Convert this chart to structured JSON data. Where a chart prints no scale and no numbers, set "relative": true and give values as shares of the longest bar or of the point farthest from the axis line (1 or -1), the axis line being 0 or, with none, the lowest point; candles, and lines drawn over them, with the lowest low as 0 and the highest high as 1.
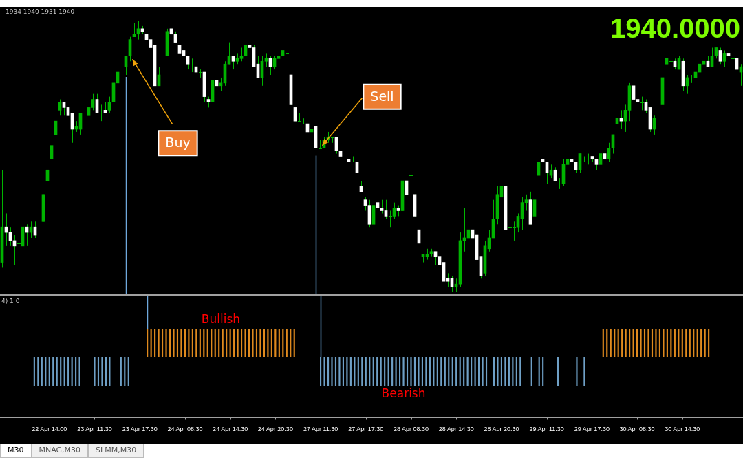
{
  "chart_data": [
    {
      "type": "candlestick",
      "relative": true,
      "color": "#00b400",
      "tick_labels": false,
      "colors": [
        "#00b400",
        "#ffffff",
        "#ffffff",
        "#ffffff",
        "#00b400",
        "#00b400",
        "#ffffff",
        "#00b400",
        "#ffffff",
        "#00b400",
        "#00b400",
        "#00b400",
        "#00b400",
        "#00b400",
        "#00b400",
        "#ffffff",
        "#ffffff",
        "#ffffff",
        "#00b400",
        "#00b400",
        "#00b400",
        "#00b400",
        "#00b400",
        "#ffffff",
        "#00b400",
        "#ffffff",
        "#00b400",
        "#00b400",
        "#00b400",
        "#00b400",
        "#00b400",
        "#00b400",
        "#00b400",
        "#00b400",
        "#ffffff",
        "#ffffff",
        "#ffffff",
        "#ffffff",
        "#00b400",
        "#00b400",
        "#00b400",
        "#ffffff",
        "#ffffff",
        "#ffffff",
        "#ffffff",
        "#ffffff",
        "#00b400",
        "#ffffff",
        "#00b400",
        "#ffffff",
        "#ffffff",
        "#00b400",
        "#ffffff",
        "#00b400",
        "#00b400",
        "#00b400",
        "#ffffff",
        "#00b400",
        "#00b400",
        "#00b400",
        "#ffffff",
        "#ffffff",
        "#ffffff",
        "#00b400",
        "#00b400",
        "#ffffff",
        "#00b400",
        "#00b400",
        "#00b400",
        "#00b400",
        "#ffffff",
        "#ffffff",
        "#00b400",
        "#00b400",
        "#ffffff",
        "#00b400",
        "#ffffff",
        "#00b400",
        "#00b400",
        "#00b400",
        "#00b400",
        "#ffffff",
        "#ffffff",
        "#00b400",
        "#ffffff",
        "#00b400",
        "#ffffff",
        "#ffffff",
        "#ffffff",
        "#ffffff",
        "#00b400",
        "#ffffff",
        "#ffffff",
        "#ffffff",
        "#00b400",
        "#00b400",
        "#ffffff",
        "#00b400",
        "#ffffff",
        "#00b400",
        "#ffffff",
        "#ffffff",
        "#00b400",
        "#00b400",
        "#00b400",
        "#ffffff",
        "#ffffff",
        "#ffffff",
        "#ffffff",
        "#ffffff",
        "#00b400",
        "#00b400",
        "#00b400",
        "#00b400",
        "#ffffff",
        "#ffffff",
        "#ffffff",
        "#00b400",
        "#00b400",
        "#00b400",
        "#00b400",
        "#00b400",
        "#ffffff",
        "#00b400",
        "#00b400",
        "#00b400",
        "#00b400",
        "#00b400",
        "#ffffff",
        "#00b400",
        "#00b400",
        "#ffffff",
        "#ffffff",
        "#00b400",
        "#ffffff",
        "#00b400",
        "#00b400",
        "#00b400",
        "#ffffff",
        "#ffffff",
        "#00b400",
        "#00b400",
        "#00b400",
        "#ffffff",
        "#ffffff",
        "#00b400",
        "#ffffff",
        "#00b400",
        "#00b400",
        "#00b400",
        "#ffffff",
        "#00b400",
        "#00b400",
        "#ffffff",
        "#ffffff",
        "#00b400",
        "#ffffff",
        "#ffffff",
        "#00b400",
        "#00b400",
        "#00b400",
        "#00b400",
        "#00b400",
        "#ffffff",
        "#00b400",
        "#ffffff",
        "#00b400",
        "#00b400",
        "#00b400",
        "#00b400",
        "#00b400",
        "#ffffff",
        "#00b400",
        "#00b400",
        "#ffffff",
        "#00b400",
        "#ffffff",
        "#00b400",
        "#ffffff",
        "#00b400"
      ],
      "annotations": [
        "1934 1940 1931 1940",
        "1940.0000",
        "Buy",
        "Sell"
      ],
      "categories": [
        null,
        null,
        null,
        null,
        null,
        null,
        null,
        null,
        null,
        null,
        null,
        null,
        null,
        null,
        null,
        null,
        null,
        null,
        null,
        null,
        null,
        null,
        null,
        null,
        null,
        null,
        null,
        null,
        null,
        null,
        null,
        null,
        null,
        null,
        null,
        null,
        null,
        null,
        null,
        null,
        null,
        null,
        null,
        null,
        null,
        null,
        null,
        null,
        null,
        null,
        null,
        null,
        null,
        null,
        null,
        null,
        null,
        null,
        null,
        null,
        null,
        null,
        null,
        null,
        null,
        null,
        null,
        null,
        null,
        null,
        null,
        null,
        null,
        null,
        null,
        null,
        null,
        null,
        null,
        null,
        null,
        null,
        null,
        null,
        null,
        null,
        null,
        null,
        null,
        null,
        null,
        null,
        null,
        null,
        null,
        null,
        null,
        null,
        null,
        null,
        null,
        null,
        null,
        null,
        null,
        null,
        null,
        null,
        null,
        null,
        null,
        null,
        null,
        null,
        null,
        null,
        null,
        null,
        null,
        null,
        null,
        null,
        null,
        null,
        null,
        null,
        null,
        null,
        null,
        null,
        null,
        null,
        null,
        null,
        null,
        null,
        null,
        null,
        null,
        null,
        null,
        null,
        null,
        null,
        null,
        null,
        null,
        null,
        null,
        null,
        null,
        null,
        null,
        null,
        null,
        null,
        null,
        null,
        null,
        null,
        null,
        null,
        null,
        null,
        null,
        null,
        null,
        null,
        null,
        null,
        null,
        null,
        null,
        null,
        null,
        null,
        null,
        null,
        null,
        null
      ],
      "ohlc": [
        [
          0.11,
          0.45,
          0.09,
          0.24
        ],
        [
          0.24,
          0.29,
          0.17,
          0.22
        ],
        [
          0.22,
          0.24,
          0.17,
          0.19
        ],
        [
          0.19,
          0.21,
          0.1,
          0.17
        ],
        [
          0.18,
          0.2,
          0.13,
          0.18
        ],
        [
          0.17,
          0.25,
          0.15,
          0.24
        ],
        [
          0.24,
          0.25,
          0.17,
          0.22
        ],
        [
          0.22,
          0.26,
          0.2,
          0.24
        ],
        [
          0.24,
          0.26,
          0.2,
          0.21
        ],
        [
          0.23,
          0.23,
          0.23,
          0.23
        ],
        [
          0.26,
          0.36,
          0.26,
          0.36
        ],
        [
          0.41,
          0.45,
          0.41,
          0.45
        ],
        [
          0.49,
          0.54,
          0.49,
          0.54
        ],
        [
          0.58,
          0.63,
          0.58,
          0.63
        ],
        [
          0.67,
          0.71,
          0.65,
          0.7
        ],
        [
          0.7,
          0.7,
          0.65,
          0.68
        ],
        [
          0.68,
          0.68,
          0.65,
          0.65
        ],
        [
          0.66,
          0.66,
          0.55,
          0.6
        ],
        [
          0.6,
          0.63,
          0.59,
          0.61
        ],
        [
          0.6,
          0.66,
          0.58,
          0.66
        ],
        [
          0.66,
          0.66,
          0.6,
          0.66
        ],
        [
          0.65,
          0.68,
          0.65,
          0.68
        ],
        [
          0.68,
          0.73,
          0.67,
          0.71
        ],
        [
          0.71,
          0.73,
          0.66,
          0.66
        ],
        [
          0.66,
          0.69,
          0.63,
          0.66
        ],
        [
          0.67,
          0.7,
          0.66,
          0.66
        ],
        [
          0.67,
          0.72,
          0.66,
          0.7
        ],
        [
          0.7,
          0.78,
          0.7,
          0.77
        ],
        [
          0.77,
          0.81,
          0.76,
          0.81
        ],
        [
          0.83,
          0.84,
          0.8,
          0.83
        ],
        [
          0.83,
          0.87,
          0.8,
          0.87
        ],
        [
          0.87,
          0.94,
          0.85,
          0.93
        ],
        [
          0.94,
          0.99,
          0.94,
          0.95
        ],
        [
          0.95,
          1,
          0.93,
          0.97
        ],
        [
          0.97,
          0.98,
          0.95,
          0.96
        ],
        [
          0.95,
          0.96,
          0.91,
          0.93
        ],
        [
          0.93,
          0.95,
          0.9,
          0.9
        ],
        [
          0.91,
          0.91,
          0.75,
          0.76
        ],
        [
          0.76,
          0.83,
          0.76,
          0.8
        ],
        [
          0.79,
          0.79,
          0.79,
          0.79
        ],
        [
          0.87,
          0.97,
          0.87,
          0.96
        ],
        [
          0.97,
          0.97,
          0.95,
          0.95
        ],
        [
          0.95,
          0.96,
          0.92,
          0.92
        ],
        [
          0.91,
          0.91,
          0.85,
          0.88
        ],
        [
          0.89,
          0.91,
          0.87,
          0.87
        ],
        [
          0.87,
          0.87,
          0.82,
          0.84
        ],
        [
          0.83,
          0.86,
          0.81,
          0.83
        ],
        [
          0.83,
          0.83,
          0.81,
          0.81
        ],
        [
          0.81,
          0.82,
          0.79,
          0.81
        ],
        [
          0.81,
          0.81,
          0.7,
          0.72
        ],
        [
          0.71,
          0.72,
          0.68,
          0.7
        ],
        [
          0.7,
          0.82,
          0.7,
          0.78
        ],
        [
          0.78,
          0.79,
          0.75,
          0.76
        ],
        [
          0.76,
          0.79,
          0.74,
          0.77
        ],
        [
          0.77,
          0.85,
          0.76,
          0.84
        ],
        [
          0.84,
          0.92,
          0.84,
          0.87
        ],
        [
          0.87,
          0.87,
          0.82,
          0.85
        ],
        [
          0.85,
          0.88,
          0.84,
          0.86
        ],
        [
          0.86,
          0.9,
          0.85,
          0.87
        ],
        [
          0.87,
          0.92,
          0.82,
          0.91
        ],
        [
          0.91,
          0.97,
          0.9,
          0.9
        ],
        [
          0.9,
          0.91,
          0.83,
          0.83
        ],
        [
          0.84,
          0.87,
          0.79,
          0.79
        ],
        [
          0.79,
          0.87,
          0.76,
          0.85
        ],
        [
          0.85,
          0.88,
          0.83,
          0.86
        ],
        [
          0.86,
          0.87,
          0.8,
          0.83
        ],
        [
          0.83,
          0.87,
          0.82,
          0.86
        ],
        [
          0.86,
          0.87,
          0.82,
          0.87
        ],
        [
          0.87,
          0.91,
          0.86,
          0.89
        ],
        [
          0.88,
          0.88,
          0.88,
          0.88
        ],
        [
          0.8,
          0.8,
          0.69,
          0.69
        ],
        [
          0.68,
          0.68,
          0.63,
          0.63
        ],
        [
          0.63,
          0.66,
          0.63,
          0.63
        ],
        [
          0.62,
          0.64,
          0.62,
          0.62
        ],
        [
          0.62,
          0.62,
          0.57,
          0.59
        ],
        [
          0.59,
          0.62,
          0.57,
          0.6
        ],
        [
          0.61,
          0.63,
          0.51,
          0.53
        ],
        [
          0.53,
          0.56,
          0.53,
          0.53
        ],
        [
          0.53,
          0.57,
          0.53,
          0.56
        ],
        [
          0.56,
          0.59,
          0.55,
          0.57
        ],
        [
          0.57,
          0.57,
          0.55,
          0.57
        ],
        [
          0.57,
          0.57,
          0.51,
          0.52
        ],
        [
          0.52,
          0.54,
          0.5,
          0.5
        ],
        [
          0.49,
          0.51,
          0.48,
          0.49
        ],
        [
          0.49,
          0.51,
          0.48,
          0.48
        ],
        [
          0.49,
          0.5,
          0.48,
          0.49
        ],
        [
          0.48,
          0.48,
          0.44,
          0.44
        ],
        [
          0.39,
          0.41,
          0.37,
          0.37
        ],
        [
          0.34,
          0.35,
          0.3,
          0.32
        ],
        [
          0.32,
          0.34,
          0.24,
          0.25
        ],
        [
          0.25,
          0.35,
          0.24,
          0.32
        ],
        [
          0.33,
          0.35,
          0.26,
          0.31
        ],
        [
          0.31,
          0.34,
          0.29,
          0.3
        ],
        [
          0.3,
          0.34,
          0.27,
          0.28
        ],
        [
          0.28,
          0.3,
          0.24,
          0.28
        ],
        [
          0.28,
          0.33,
          0.27,
          0.31
        ],
        [
          0.31,
          0.32,
          0.28,
          0.3
        ],
        [
          0.3,
          0.41,
          0.3,
          0.41
        ],
        [
          0.41,
          0.48,
          0.36,
          0.36
        ],
        [
          0.43,
          0.43,
          0.43,
          0.43
        ],
        [
          0.36,
          0.36,
          0.28,
          0.28
        ],
        [
          0.23,
          0.23,
          0.18,
          0.18
        ],
        [
          0.13,
          0.14,
          0.11,
          0.14
        ],
        [
          0.13,
          0.16,
          0.12,
          0.14
        ],
        [
          0.14,
          0.16,
          0.13,
          0.15
        ],
        [
          0.15,
          0.15,
          0.1,
          0.13
        ],
        [
          0.13,
          0.14,
          0.1,
          0.1
        ],
        [
          0.11,
          0.11,
          0.04,
          0.04
        ],
        [
          0.05,
          0.07,
          0.02,
          0.04
        ],
        [
          0.05,
          0.06,
          0,
          0.02
        ],
        [
          0.02,
          0.05,
          0,
          0.03
        ],
        [
          0.03,
          0.22,
          0.02,
          0.19
        ],
        [
          0.19,
          0.31,
          0.15,
          0.2
        ],
        [
          0.2,
          0.28,
          0.19,
          0.23
        ],
        [
          0.23,
          0.23,
          0.18,
          0.2
        ],
        [
          0.21,
          0.21,
          0.11,
          0.12
        ],
        [
          0.13,
          0.13,
          0.05,
          0.06
        ],
        [
          0.07,
          0.19,
          0.06,
          0.17
        ],
        [
          0.16,
          0.23,
          0.15,
          0.2
        ],
        [
          0.2,
          0.34,
          0.2,
          0.27
        ],
        [
          0.27,
          0.39,
          0.25,
          0.36
        ],
        [
          0.35,
          0.43,
          0.35,
          0.39
        ],
        [
          0.39,
          0.39,
          0.21,
          0.23
        ],
        [
          0.24,
          0.27,
          0.18,
          0.24
        ],
        [
          0.24,
          0.26,
          0.19,
          0.24
        ],
        [
          0.24,
          0.29,
          0.22,
          0.28
        ],
        [
          0.27,
          0.35,
          0.23,
          0.33
        ],
        [
          0.33,
          0.36,
          0.3,
          0.34
        ],
        [
          0.34,
          0.37,
          0.25,
          0.25
        ],
        [
          0.28,
          0.34,
          0.28,
          0.34
        ],
        [
          0.43,
          0.48,
          0.43,
          0.48
        ],
        [
          0.49,
          0.51,
          0.48,
          0.48
        ],
        [
          0.48,
          0.48,
          0.4,
          0.44
        ],
        [
          0.43,
          0.47,
          0.42,
          0.45
        ],
        [
          0.45,
          0.46,
          0.41,
          0.41
        ],
        [
          0.4,
          0.42,
          0.38,
          0.4
        ],
        [
          0.4,
          0.49,
          0.39,
          0.47
        ],
        [
          0.47,
          0.53,
          0.46,
          0.49
        ],
        [
          0.49,
          0.5,
          0.45,
          0.48
        ],
        [
          0.48,
          0.48,
          0.44,
          0.45
        ],
        [
          0.45,
          0.51,
          0.44,
          0.51
        ],
        [
          0.5,
          0.5,
          0.48,
          0.5
        ],
        [
          0.5,
          0.51,
          0.47,
          0.5
        ],
        [
          0.5,
          0.5,
          0.48,
          0.49
        ],
        [
          0.49,
          0.49,
          0.45,
          0.47
        ],
        [
          0.47,
          0.54,
          0.46,
          0.51
        ],
        [
          0.51,
          0.52,
          0.48,
          0.49
        ],
        [
          0.49,
          0.55,
          0.48,
          0.53
        ],
        [
          0.53,
          0.58,
          0.51,
          0.58
        ],
        [
          0.62,
          0.64,
          0.62,
          0.64
        ],
        [
          0.64,
          0.67,
          0.6,
          0.63
        ],
        [
          0.63,
          0.69,
          0.59,
          0.67
        ],
        [
          0.67,
          0.77,
          0.63,
          0.76
        ],
        [
          0.76,
          0.76,
          0.71,
          0.71
        ],
        [
          0.71,
          0.73,
          0.65,
          0.7
        ],
        [
          0.7,
          0.72,
          0.67,
          0.7
        ],
        [
          0.7,
          0.71,
          0.66,
          0.67
        ],
        [
          0.68,
          0.68,
          0.59,
          0.6
        ],
        [
          0.6,
          0.65,
          0.58,
          0.64
        ],
        [
          0.62,
          0.62,
          0.62,
          0.62
        ],
        [
          0.69,
          0.79,
          0.69,
          0.79
        ],
        [
          0.84,
          0.87,
          0.83,
          0.86
        ],
        [
          0.85,
          0.86,
          0.8,
          0.85
        ],
        [
          0.85,
          0.86,
          0.82,
          0.83
        ],
        [
          0.82,
          0.87,
          0.82,
          0.86
        ],
        [
          0.85,
          0.86,
          0.74,
          0.76
        ],
        [
          0.76,
          0.8,
          0.73,
          0.79
        ],
        [
          0.79,
          0.8,
          0.77,
          0.79
        ],
        [
          0.79,
          0.87,
          0.79,
          0.81
        ],
        [
          0.81,
          0.85,
          0.79,
          0.84
        ],
        [
          0.84,
          0.85,
          0.82,
          0.85
        ],
        [
          0.85,
          0.87,
          0.83,
          0.83
        ],
        [
          0.83,
          0.9,
          0.83,
          0.87
        ],
        [
          0.87,
          0.9,
          0.86,
          0.9
        ],
        [
          0.89,
          0.9,
          0.84,
          0.85
        ],
        [
          0.85,
          0.89,
          0.83,
          0.88
        ],
        [
          0.88,
          0.89,
          0.86,
          0.87
        ],
        [
          0.86,
          0.88,
          0.85,
          0.86
        ],
        [
          0.86,
          0.87,
          0.78,
          0.82
        ],
        [
          0.81,
          0.84,
          0.76,
          0.83
        ]
      ]
    },
    {
      "type": "bar",
      "relative": true,
      "stacked": true,
      "tick_labels": "x",
      "annotations": [
        "4) 1 0",
        "M30",
        "MNAG,M30",
        "SLMM,M30"
      ],
      "categories": [
        null,
        null,
        null,
        null,
        "22 Apr 14:00",
        null,
        null,
        null,
        null,
        null,
        null,
        null,
        null,
        null,
        null,
        null,
        "23 Apr 11:30",
        null,
        null,
        null,
        null,
        null,
        null,
        null,
        null,
        null,
        null,
        null,
        "23 Apr 17:30",
        null,
        null,
        null,
        null,
        null,
        null,
        null,
        null,
        null,
        null,
        null,
        "24 Apr 08:30",
        null,
        null,
        null,
        null,
        null,
        null,
        null,
        null,
        null,
        null,
        null,
        "24 Apr 14:30",
        null,
        null,
        null,
        null,
        null,
        null,
        null,
        null,
        null,
        null,
        null,
        "24 Apr 20:30",
        null,
        null,
        null,
        null,
        null,
        null,
        null,
        null,
        null,
        null,
        null,
        "27 Apr 11:30",
        null,
        null,
        null,
        null,
        null,
        null,
        null,
        null,
        null,
        null,
        null,
        "27 Apr 17:30",
        null,
        null,
        null,
        null,
        null,
        null,
        null,
        null,
        null,
        null,
        null,
        "28 Apr 08:30",
        null,
        null,
        null,
        null,
        null,
        null,
        null,
        null,
        null,
        null,
        null,
        "28 Apr 14:30",
        null,
        null,
        null,
        null,
        null,
        null,
        null,
        null,
        null,
        null,
        null,
        "28 Apr 20:30",
        null,
        null,
        null,
        null,
        null,
        null,
        null,
        null,
        null,
        null,
        null,
        "29 Apr 11:30",
        null,
        null,
        null,
        null,
        null,
        null,
        null,
        null,
        null,
        null,
        null,
        "29 Apr 17:30",
        null,
        null,
        null,
        null,
        null,
        null,
        null,
        null,
        null,
        null,
        null,
        "30 Apr 08:30",
        null,
        null,
        null,
        null,
        null,
        null,
        null,
        null,
        null,
        null,
        null,
        "30 Apr 14:30",
        null,
        null,
        null,
        null,
        null,
        null,
        null
      ],
      "series": [
        {
          "name": "Bullish",
          "color": "#e08a1e",
          "values": [
            null,
            null,
            null,
            null,
            null,
            null,
            null,
            null,
            null,
            null,
            null,
            null,
            null,
            null,
            null,
            null,
            null,
            null,
            null,
            null,
            null,
            null,
            null,
            null,
            null,
            null,
            null,
            null,
            null,
            null,
            1,
            1,
            1,
            1,
            1,
            1,
            1,
            1,
            1,
            1,
            1,
            1,
            1,
            1,
            1,
            1,
            1,
            1,
            1,
            1,
            1,
            1,
            1,
            1,
            1,
            1,
            1,
            1,
            1,
            1,
            1,
            1,
            1,
            1,
            1,
            1,
            1,
            1,
            1,
            1,
            null,
            null,
            null,
            null,
            null,
            null,
            null,
            null,
            null,
            null,
            null,
            null,
            null,
            null,
            null,
            null,
            null,
            null,
            null,
            null,
            null,
            null,
            null,
            null,
            null,
            null,
            null,
            null,
            null,
            null,
            null,
            null,
            null,
            null,
            null,
            null,
            null,
            null,
            null,
            null,
            null,
            null,
            null,
            null,
            null,
            null,
            null,
            null,
            null,
            null,
            null,
            null,
            null,
            null,
            null,
            null,
            null,
            null,
            null,
            null,
            null,
            null,
            null,
            null,
            null,
            null,
            null,
            null,
            null,
            null,
            null,
            null,
            null,
            null,
            null,
            null,
            null,
            null,
            null,
            null,
            null,
            1,
            1,
            1,
            1,
            1,
            1,
            1,
            1,
            1,
            1,
            1,
            1,
            1,
            1,
            1,
            1,
            1,
            1,
            1,
            1,
            1,
            1,
            1,
            1,
            1,
            1,
            1,
            1,
            1
          ]
        },
        {
          "name": "Bearish",
          "color": "#6fa0c6",
          "values": [
            -1,
            -1,
            -1,
            -1,
            -1,
            -1,
            -1,
            -1,
            -1,
            -1,
            -1,
            -1,
            -1,
            null,
            null,
            null,
            -1,
            -1,
            -1,
            -1,
            -1,
            null,
            null,
            -1,
            -1,
            -1,
            null,
            null,
            null,
            null,
            null,
            null,
            null,
            null,
            null,
            null,
            null,
            null,
            null,
            null,
            null,
            null,
            null,
            null,
            null,
            null,
            null,
            null,
            null,
            null,
            null,
            null,
            null,
            null,
            null,
            null,
            null,
            null,
            null,
            null,
            null,
            null,
            null,
            null,
            null,
            null,
            null,
            null,
            null,
            null,
            null,
            null,
            null,
            null,
            null,
            null,
            -1,
            -1,
            -1,
            -1,
            -1,
            -1,
            -1,
            -1,
            -1,
            -1,
            -1,
            -1,
            -1,
            -1,
            -1,
            -1,
            -1,
            -1,
            -1,
            -1,
            -1,
            -1,
            -1,
            -1,
            -1,
            -1,
            -1,
            -1,
            -1,
            -1,
            -1,
            -1,
            -1,
            -1,
            -1,
            -1,
            -1,
            -1,
            -1,
            -1,
            -1,
            -1,
            -1,
            -1,
            -1,
            null,
            -1,
            -1,
            -1,
            -1,
            -1,
            -1,
            -1,
            -1,
            null,
            null,
            -1,
            null,
            -1,
            -1,
            null,
            null,
            null,
            -1,
            null,
            null,
            null,
            null,
            -1,
            null,
            -1,
            null,
            null,
            null,
            null,
            null,
            null,
            null,
            null,
            null,
            null,
            null,
            null,
            null,
            null,
            null,
            null,
            null,
            null,
            null,
            null,
            null,
            null,
            null,
            null,
            null,
            null,
            null,
            null,
            null,
            null,
            null,
            null,
            null
          ]
        }
      ]
    }
  ]
}
